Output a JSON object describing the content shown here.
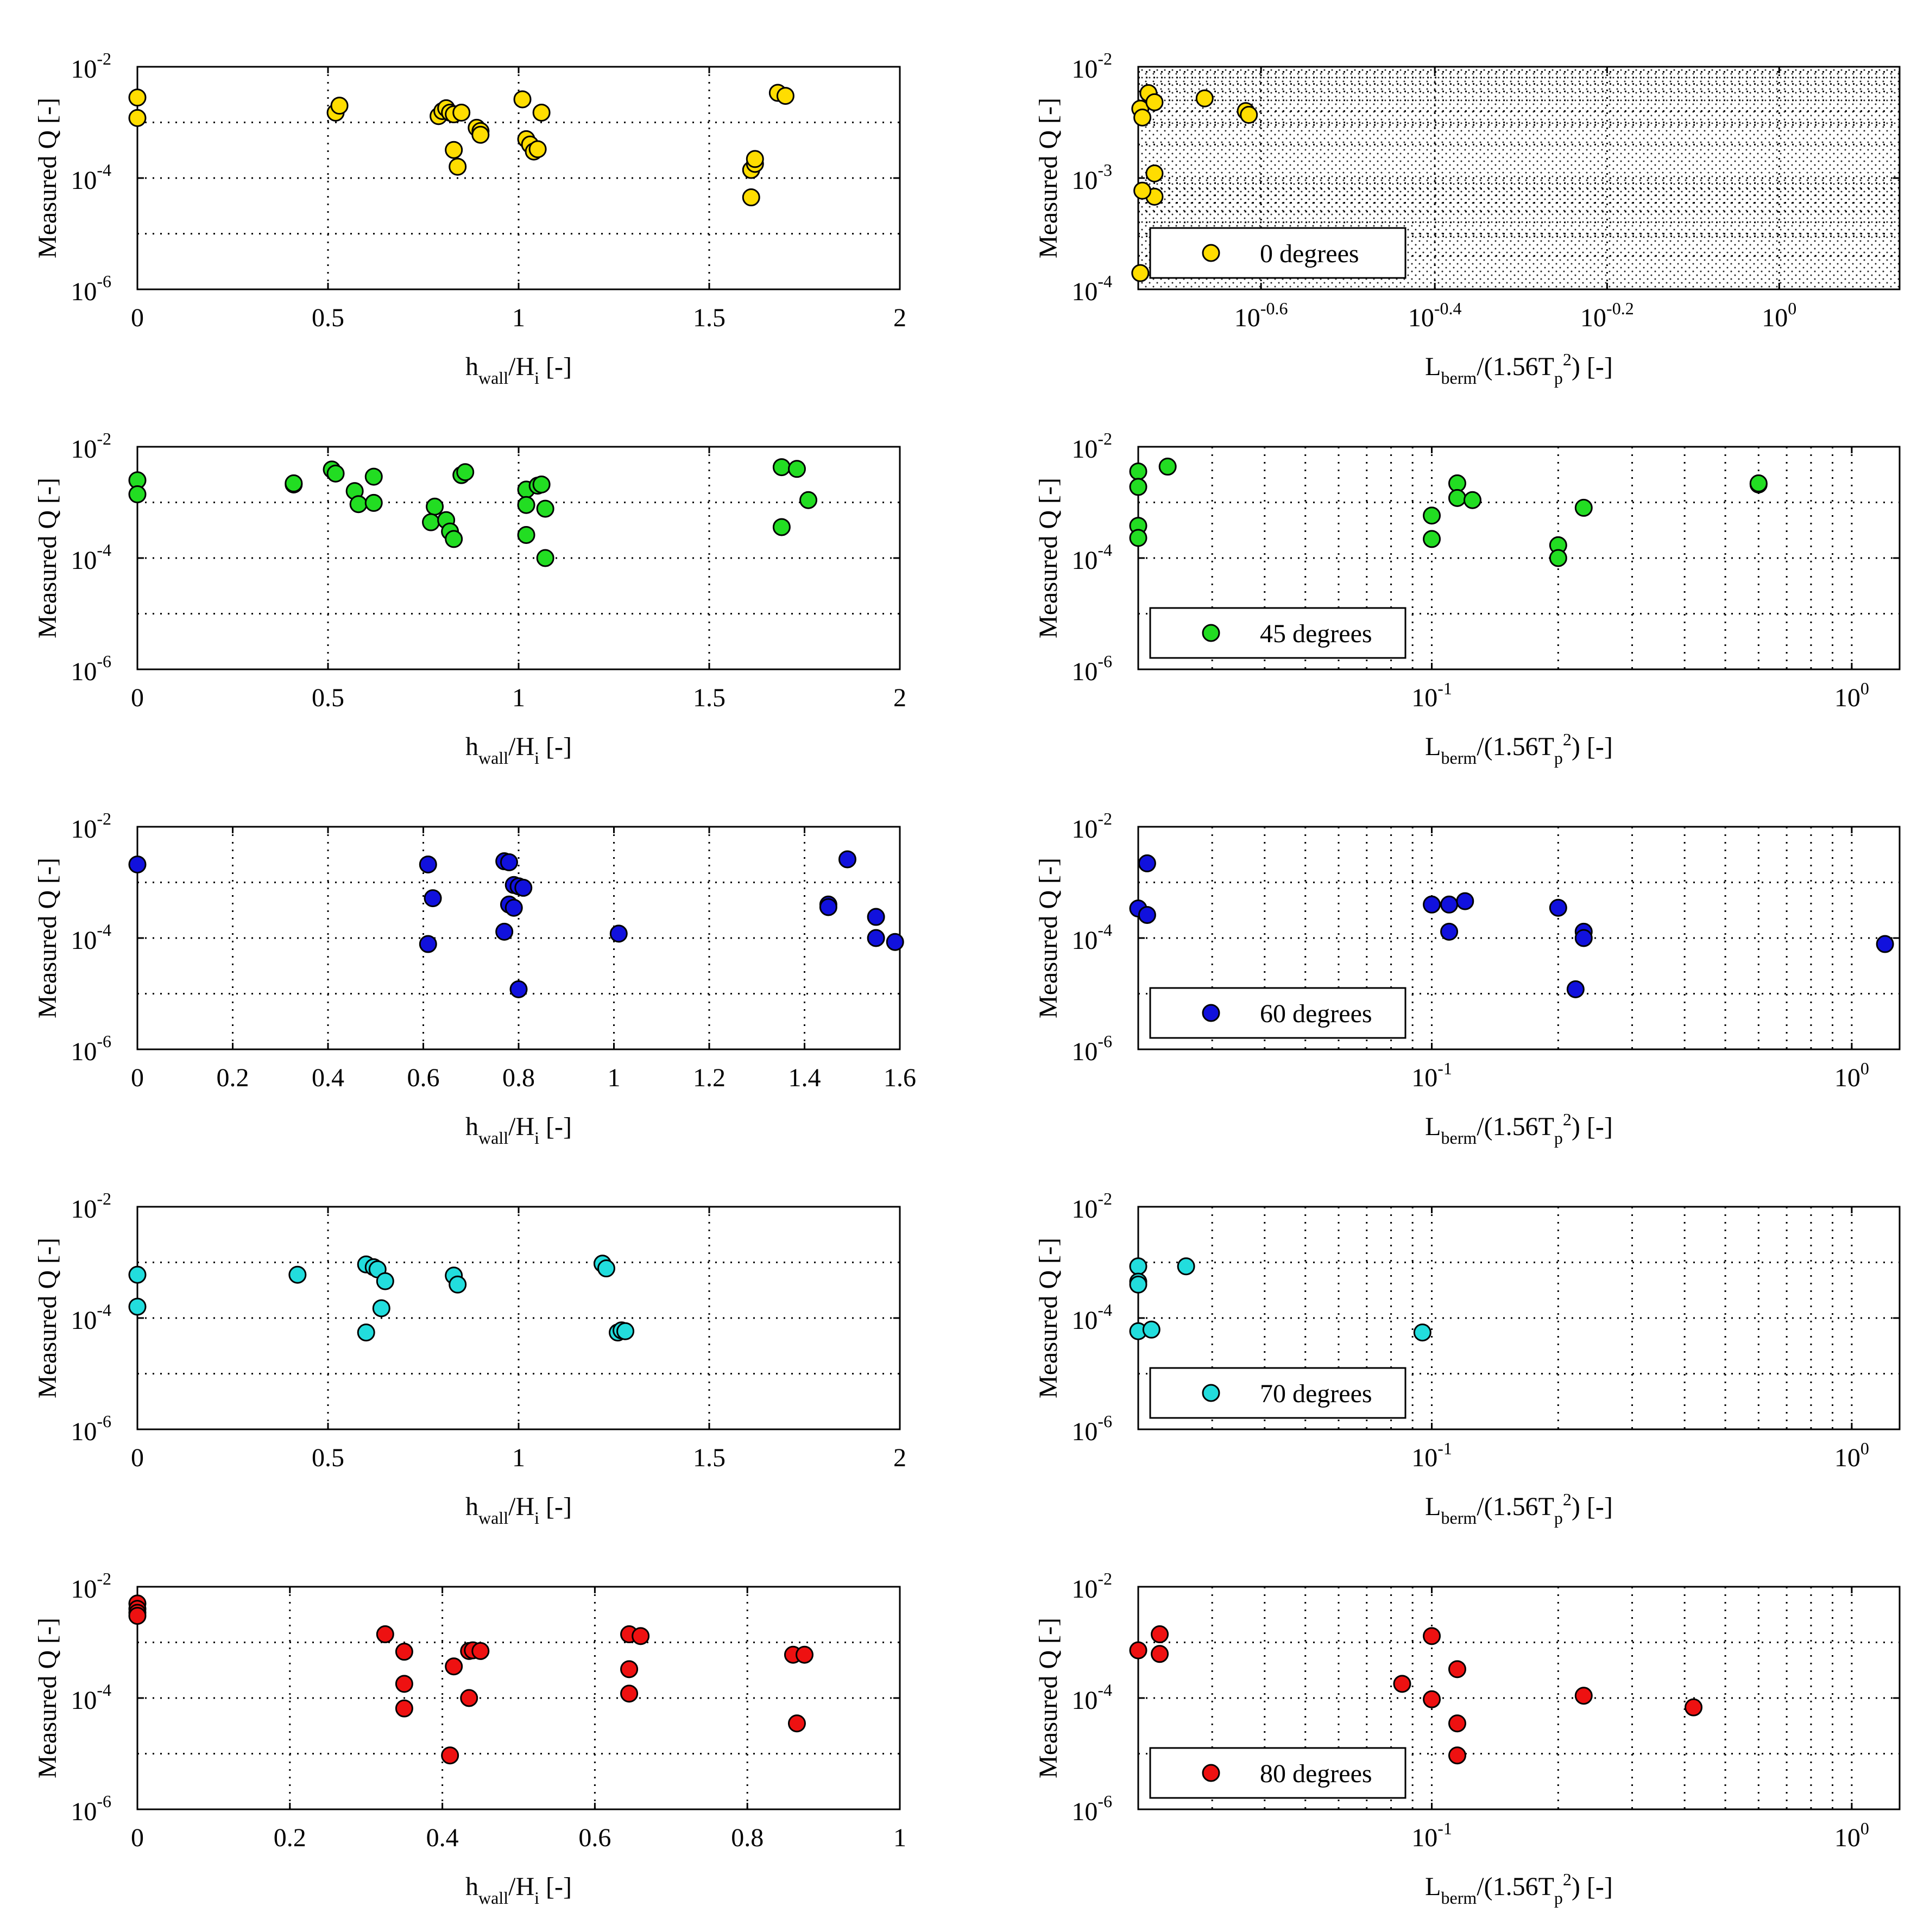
{
  "figure": {
    "hwall_xlabel": "h_wall/H_i [-]",
    "lberm_xlabel": "L_berm/(1.56T_p^2) [-]",
    "ylabel": "Measured Q [-]"
  },
  "chart_data": [
    {
      "id": "r1l",
      "type": "scatter",
      "row": 0,
      "col": 0,
      "xscale": "linear",
      "xlim": [
        0,
        2
      ],
      "xticks": [
        {
          "v": 0,
          "t": "0"
        },
        {
          "v": 0.5,
          "t": "0.5"
        },
        {
          "v": 1,
          "t": "1"
        },
        {
          "v": 1.5,
          "t": "1.5"
        },
        {
          "v": 2,
          "t": "2"
        }
      ],
      "yscale": "log",
      "ylim": [
        1e-06,
        0.01
      ],
      "yticks": [
        -2,
        -4,
        -6
      ],
      "xlabel": "h_wall/H_i [-]",
      "ylabel": "Measured Q [-]",
      "color": "#ffdd00",
      "filled": false,
      "points": [
        [
          0,
          0.0028
        ],
        [
          0,
          0.0012
        ],
        [
          0.52,
          0.0015
        ],
        [
          0.53,
          0.002
        ],
        [
          0.79,
          0.0013
        ],
        [
          0.8,
          0.0016
        ],
        [
          0.81,
          0.0018
        ],
        [
          0.82,
          0.0015
        ],
        [
          0.83,
          0.0014
        ],
        [
          0.85,
          0.0015
        ],
        [
          0.89,
          0.0008
        ],
        [
          0.9,
          0.0007
        ],
        [
          0.9,
          0.0006
        ],
        [
          0.83,
          0.00032
        ],
        [
          0.84,
          0.00016
        ],
        [
          1.01,
          0.0026
        ],
        [
          1.02,
          0.0005
        ],
        [
          1.03,
          0.0004
        ],
        [
          1.04,
          0.0003
        ],
        [
          1.05,
          0.00033
        ],
        [
          1.06,
          0.0015
        ],
        [
          1.61,
          0.00014
        ],
        [
          1.62,
          0.00018
        ],
        [
          1.62,
          0.00022
        ],
        [
          1.61,
          4.5e-05
        ],
        [
          1.68,
          0.0034
        ],
        [
          1.7,
          0.003
        ]
      ]
    },
    {
      "id": "r1r",
      "type": "scatter",
      "row": 0,
      "col": 1,
      "xscale": "log",
      "xlim": [
        0.18,
        1.38
      ],
      "xticks": [
        {
          "v": 0.25,
          "t": "10",
          "e": "-0.6"
        },
        {
          "v": 0.398,
          "t": "10",
          "e": "-0.4"
        },
        {
          "v": 0.631,
          "t": "10",
          "e": "-0.2"
        },
        {
          "v": 1.0,
          "t": "10",
          "e": "0"
        }
      ],
      "xminor": [],
      "hatched": true,
      "yscale": "log",
      "ylim": [
        0.0001,
        0.01
      ],
      "yticks": [
        -2,
        -3,
        -4
      ],
      "ygrid": [
        -2,
        -2.5,
        -3,
        -3.5,
        -4
      ],
      "yminor_grid": true,
      "xlabel": "L_berm/(1.56T_p^2) [-]",
      "ylabel": "Measured Q [-]",
      "color": "#ffdd00",
      "filled": false,
      "legend": "0 degrees",
      "points": [
        [
          0.181,
          0.0042
        ],
        [
          0.182,
          0.0035
        ],
        [
          0.185,
          0.0058
        ],
        [
          0.188,
          0.0048
        ],
        [
          0.188,
          0.0011
        ],
        [
          0.188,
          0.00068
        ],
        [
          0.182,
          0.00077
        ],
        [
          0.181,
          0.00014
        ],
        [
          0.215,
          0.0052
        ],
        [
          0.24,
          0.004
        ],
        [
          0.242,
          0.0037
        ]
      ]
    },
    {
      "id": "r2l",
      "type": "scatter",
      "row": 1,
      "col": 0,
      "xscale": "linear",
      "xlim": [
        0,
        2
      ],
      "xticks": [
        {
          "v": 0,
          "t": "0"
        },
        {
          "v": 0.5,
          "t": "0.5"
        },
        {
          "v": 1,
          "t": "1"
        },
        {
          "v": 1.5,
          "t": "1.5"
        },
        {
          "v": 2,
          "t": "2"
        }
      ],
      "yscale": "log",
      "ylim": [
        1e-06,
        0.01
      ],
      "yticks": [
        -2,
        -4,
        -6
      ],
      "xlabel": "h_wall/H_i [-]",
      "ylabel": "Measured Q [-]",
      "color": "#22dd22",
      "filled": true,
      "points": [
        [
          0,
          0.0025
        ],
        [
          0,
          0.0014
        ],
        [
          0.41,
          0.0021
        ],
        [
          0.41,
          0.0022
        ],
        [
          0.51,
          0.0039
        ],
        [
          0.52,
          0.0033
        ],
        [
          0.57,
          0.0016
        ],
        [
          0.58,
          0.00093
        ],
        [
          0.62,
          0.0029
        ],
        [
          0.62,
          0.00098
        ],
        [
          0.78,
          0.00084
        ],
        [
          0.77,
          0.00044
        ],
        [
          0.81,
          0.00048
        ],
        [
          0.82,
          0.0003
        ],
        [
          0.83,
          0.00022
        ],
        [
          0.85,
          0.0031
        ],
        [
          0.86,
          0.0035
        ],
        [
          1.02,
          0.0017
        ],
        [
          1.02,
          0.0009
        ],
        [
          1.02,
          0.00026
        ],
        [
          1.05,
          0.002
        ],
        [
          1.06,
          0.0021
        ],
        [
          1.07,
          0.00077
        ],
        [
          1.07,
          0.0001
        ],
        [
          1.69,
          0.0043
        ],
        [
          1.73,
          0.004
        ],
        [
          1.76,
          0.0011
        ],
        [
          1.69,
          0.00036
        ]
      ]
    },
    {
      "id": "r2r",
      "type": "scatter",
      "row": 1,
      "col": 1,
      "xscale": "log",
      "xlim": [
        0.02,
        1.3
      ],
      "xticks": [
        {
          "v": 0.1,
          "t": "10",
          "e": "-1"
        },
        {
          "v": 1.0,
          "t": "10",
          "e": "0"
        }
      ],
      "xminor": [
        0.03,
        0.04,
        0.05,
        0.06,
        0.07,
        0.08,
        0.09,
        0.2,
        0.3,
        0.4,
        0.5,
        0.6,
        0.7,
        0.8,
        0.9
      ],
      "yscale": "log",
      "ylim": [
        1e-06,
        0.01
      ],
      "yticks": [
        -2,
        -4,
        -6
      ],
      "xlabel": "L_berm/(1.56T_p^2) [-]",
      "ylabel": "Measured Q [-]",
      "color": "#22dd22",
      "filled": true,
      "legend": "45 degrees",
      "points": [
        [
          0.02,
          0.0036
        ],
        [
          0.02,
          0.0019
        ],
        [
          0.02,
          0.00038
        ],
        [
          0.02,
          0.00023
        ],
        [
          0.0235,
          0.0044
        ],
        [
          0.1,
          0.00058
        ],
        [
          0.1,
          0.00022
        ],
        [
          0.115,
          0.0022
        ],
        [
          0.115,
          0.0012
        ],
        [
          0.125,
          0.0011
        ],
        [
          0.2,
          0.00017
        ],
        [
          0.2,
          0.0001
        ],
        [
          0.23,
          0.0008
        ],
        [
          0.6,
          0.0021
        ],
        [
          0.6,
          0.0022
        ]
      ]
    },
    {
      "id": "r3l",
      "type": "scatter",
      "row": 2,
      "col": 0,
      "xscale": "linear",
      "xlim": [
        0,
        1.6
      ],
      "xticks": [
        {
          "v": 0,
          "t": "0"
        },
        {
          "v": 0.2,
          "t": "0.2"
        },
        {
          "v": 0.4,
          "t": "0.4"
        },
        {
          "v": 0.6,
          "t": "0.6"
        },
        {
          "v": 0.8,
          "t": "0.8"
        },
        {
          "v": 1,
          "t": "1"
        },
        {
          "v": 1.2,
          "t": "1.2"
        },
        {
          "v": 1.4,
          "t": "1.4"
        },
        {
          "v": 1.6,
          "t": "1.6"
        }
      ],
      "yscale": "log",
      "ylim": [
        1e-06,
        0.01
      ],
      "yticks": [
        -2,
        -4,
        -6
      ],
      "xlabel": "h_wall/H_i [-]",
      "ylabel": "Measured Q [-]",
      "color": "#1111dd",
      "filled": true,
      "points": [
        [
          0,
          0.0021
        ],
        [
          0.61,
          0.0021
        ],
        [
          0.62,
          0.00052
        ],
        [
          0.61,
          7.8e-05
        ],
        [
          0.77,
          0.0024
        ],
        [
          0.78,
          0.0023
        ],
        [
          0.79,
          0.0009
        ],
        [
          0.8,
          0.00085
        ],
        [
          0.81,
          0.0008
        ],
        [
          0.78,
          0.0004
        ],
        [
          0.79,
          0.00035
        ],
        [
          0.77,
          0.00013
        ],
        [
          0.8,
          1.2e-05
        ],
        [
          1.01,
          0.00012
        ],
        [
          1.45,
          0.0004
        ],
        [
          1.45,
          0.00036
        ],
        [
          1.49,
          0.0026
        ],
        [
          1.55,
          0.00024
        ],
        [
          1.55,
          0.0001
        ],
        [
          1.59,
          8.5e-05
        ]
      ]
    },
    {
      "id": "r3r",
      "type": "scatter",
      "row": 2,
      "col": 1,
      "xscale": "log",
      "xlim": [
        0.02,
        1.3
      ],
      "xticks": [
        {
          "v": 0.1,
          "t": "10",
          "e": "-1"
        },
        {
          "v": 1.0,
          "t": "10",
          "e": "0"
        }
      ],
      "xminor": [
        0.03,
        0.04,
        0.05,
        0.06,
        0.07,
        0.08,
        0.09,
        0.2,
        0.3,
        0.4,
        0.5,
        0.6,
        0.7,
        0.8,
        0.9
      ],
      "yscale": "log",
      "ylim": [
        1e-06,
        0.01
      ],
      "yticks": [
        -2,
        -4,
        -6
      ],
      "xlabel": "L_berm/(1.56T_p^2) [-]",
      "ylabel": "Measured Q [-]",
      "color": "#1111dd",
      "filled": true,
      "legend": "60 degrees",
      "points": [
        [
          0.02,
          0.00034
        ],
        [
          0.021,
          0.00026
        ],
        [
          0.021,
          0.0022
        ],
        [
          0.1,
          0.0004
        ],
        [
          0.11,
          0.0004
        ],
        [
          0.12,
          0.00046
        ],
        [
          0.11,
          0.00013
        ],
        [
          0.2,
          0.00035
        ],
        [
          0.22,
          1.2e-05
        ],
        [
          0.23,
          0.00013
        ],
        [
          0.23,
          0.0001
        ],
        [
          1.2,
          7.8e-05
        ]
      ]
    },
    {
      "id": "r4l",
      "type": "scatter",
      "row": 3,
      "col": 0,
      "xscale": "linear",
      "xlim": [
        0,
        2
      ],
      "xticks": [
        {
          "v": 0,
          "t": "0"
        },
        {
          "v": 0.5,
          "t": "0.5"
        },
        {
          "v": 1,
          "t": "1"
        },
        {
          "v": 1.5,
          "t": "1.5"
        },
        {
          "v": 2,
          "t": "2"
        }
      ],
      "yscale": "log",
      "ylim": [
        1e-06,
        0.01
      ],
      "yticks": [
        -2,
        -4,
        -6
      ],
      "xlabel": "h_wall/H_i [-]",
      "ylabel": "Measured Q [-]",
      "color": "#22dddd",
      "filled": false,
      "points": [
        [
          0,
          0.0006
        ],
        [
          0,
          0.00016
        ],
        [
          0.42,
          0.0006
        ],
        [
          0.6,
          0.00092
        ],
        [
          0.62,
          0.00082
        ],
        [
          0.63,
          0.00075
        ],
        [
          0.65,
          0.00046
        ],
        [
          0.64,
          0.00015
        ],
        [
          0.6,
          5.5e-05
        ],
        [
          0.83,
          0.00058
        ],
        [
          0.84,
          0.0004
        ],
        [
          1.22,
          0.00095
        ],
        [
          1.23,
          0.00078
        ],
        [
          1.26,
          5.5e-05
        ],
        [
          1.27,
          6e-05
        ],
        [
          1.28,
          5.8e-05
        ]
      ]
    },
    {
      "id": "r4r",
      "type": "scatter",
      "row": 3,
      "col": 1,
      "xscale": "log",
      "xlim": [
        0.02,
        1.3
      ],
      "xticks": [
        {
          "v": 0.1,
          "t": "10",
          "e": "-1"
        },
        {
          "v": 1.0,
          "t": "10",
          "e": "0"
        }
      ],
      "xminor": [
        0.03,
        0.04,
        0.05,
        0.06,
        0.07,
        0.08,
        0.09,
        0.2,
        0.3,
        0.4,
        0.5,
        0.6,
        0.7,
        0.8,
        0.9
      ],
      "yscale": "log",
      "ylim": [
        1e-06,
        0.01
      ],
      "yticks": [
        -2,
        -4,
        -6
      ],
      "xlabel": "L_berm/(1.56T_p^2) [-]",
      "ylabel": "Measured Q [-]",
      "color": "#22dddd",
      "filled": true,
      "legend": "70 degrees",
      "points": [
        [
          0.02,
          0.00085
        ],
        [
          0.02,
          0.00045
        ],
        [
          0.02,
          0.0004
        ],
        [
          0.02,
          5.8e-05
        ],
        [
          0.0215,
          6.2e-05
        ],
        [
          0.026,
          0.00085
        ],
        [
          0.095,
          5.5e-05
        ]
      ]
    },
    {
      "id": "r5l",
      "type": "scatter",
      "row": 4,
      "col": 0,
      "xscale": "linear",
      "xlim": [
        0,
        1
      ],
      "xticks": [
        {
          "v": 0,
          "t": "0"
        },
        {
          "v": 0.2,
          "t": "0.2"
        },
        {
          "v": 0.4,
          "t": "0.4"
        },
        {
          "v": 0.6,
          "t": "0.6"
        },
        {
          "v": 0.8,
          "t": "0.8"
        },
        {
          "v": 1,
          "t": "1"
        }
      ],
      "yscale": "log",
      "ylim": [
        1e-06,
        0.01
      ],
      "yticks": [
        -2,
        -4,
        -6
      ],
      "xlabel": "h_wall/H_i [-]",
      "ylabel": "Measured Q [-]",
      "color": "#ee1111",
      "filled": true,
      "points": [
        [
          0,
          0.005
        ],
        [
          0,
          0.004
        ],
        [
          0,
          0.0034
        ],
        [
          0,
          0.003
        ],
        [
          0.325,
          0.0014
        ],
        [
          0.35,
          0.00068
        ],
        [
          0.35,
          0.00018
        ],
        [
          0.35,
          6.5e-05
        ],
        [
          0.41,
          9.3e-06
        ],
        [
          0.415,
          0.00037
        ],
        [
          0.435,
          0.0007
        ],
        [
          0.44,
          0.00072
        ],
        [
          0.45,
          0.0007
        ],
        [
          0.435,
          0.0001
        ],
        [
          0.645,
          0.0014
        ],
        [
          0.66,
          0.0013
        ],
        [
          0.645,
          0.00033
        ],
        [
          0.645,
          0.00012
        ],
        [
          0.86,
          0.0006
        ],
        [
          0.875,
          0.0006
        ],
        [
          0.865,
          3.5e-05
        ]
      ]
    },
    {
      "id": "r5r",
      "type": "scatter",
      "row": 4,
      "col": 1,
      "xscale": "log",
      "xlim": [
        0.02,
        1.3
      ],
      "xticks": [
        {
          "v": 0.1,
          "t": "10",
          "e": "-1"
        },
        {
          "v": 1.0,
          "t": "10",
          "e": "0"
        }
      ],
      "xminor": [
        0.03,
        0.04,
        0.05,
        0.06,
        0.07,
        0.08,
        0.09,
        0.2,
        0.3,
        0.4,
        0.5,
        0.6,
        0.7,
        0.8,
        0.9
      ],
      "yscale": "log",
      "ylim": [
        1e-06,
        0.01
      ],
      "yticks": [
        -2,
        -4,
        -6
      ],
      "xlabel": "L_berm/(1.56T_p^2) [-]",
      "ylabel": "Measured Q [-]",
      "color": "#ee1111",
      "filled": true,
      "legend": "80 degrees",
      "points": [
        [
          0.02,
          0.00072
        ],
        [
          0.0225,
          0.0014
        ],
        [
          0.0225,
          0.00062
        ],
        [
          0.085,
          0.00018
        ],
        [
          0.1,
          0.0013
        ],
        [
          0.1,
          9.5e-05
        ],
        [
          0.115,
          0.00033
        ],
        [
          0.115,
          3.5e-05
        ],
        [
          0.115,
          9.3e-06
        ],
        [
          0.23,
          0.00011
        ],
        [
          0.42,
          6.8e-05
        ]
      ]
    }
  ]
}
